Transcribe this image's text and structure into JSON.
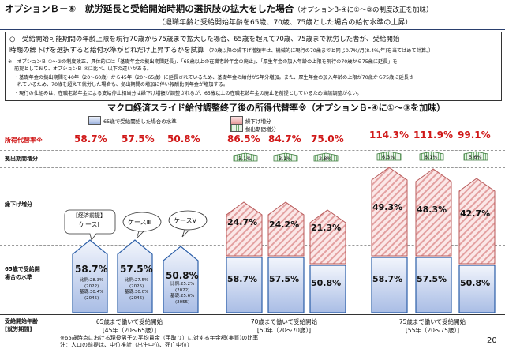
{
  "header": {
    "title": "オプションＢ－⑤　就労延長と受給開始時期の選択肢の拡大をした場合",
    "note": "（オプションB-④に①～③の制度改正を加味）",
    "subtitle": "（退職年齢と受給開始年齢を65歳、70歳、75歳とした場合の給付水準の上昇）"
  },
  "box": {
    "line1": "○　受給開始可能期間の年齢上限を現行70歳から75歳まで拡大した場合、65歳を超えて70歳、75歳まで就労した者が、受給開始",
    "line2": "時期の繰下げを選択すると給付水準がどれだけ上昇するかを試算",
    "line2_note": "（70歳以降の繰下げ増額率は、機械的に現行の70歳までと同じ0.7%/月(8.4%/年)を当てはめて計算。）",
    "note1": "※　オプションＢ-①～③の制度改正、具体的には「基礎年金の拠出期間延長」、「65歳以上の在職老齢年金の廃止」、「厚生年金の加入年齢の上限を現行の70歳から75歳に延長」を",
    "note1b": "前提としており、オプションＢ-④に比べ、以下の違いがある。",
    "note2": "・基礎年金の拠出期間を40年（20～60歳）から45年（20～65歳）に延長されているため、基礎年金の給付が5年分増加。また、厚生年金の加入年齢の上限が70歳から75歳に延長さ",
    "note2b": "れているため、70歳を超えて就労した場合も、拠出期間の増加に伴い報酬比例年金が増加する。",
    "note3": "・現行の仕組みは、在職老齢年金による支給停止相当分は繰下げ増額が調整されるが、65歳以上の在職老齢年金の廃止を前提としているため当該調整がない。"
  },
  "chart": {
    "title": "マクロ経済スライド給付調整終了後の所得代替率※（オプションＢ-④に①～③を加味）",
    "legend": [
      "65歳で受給開始した場合の水準",
      "繰下げ増分",
      "拠出期間増分"
    ],
    "row_labels": {
      "rate": "所得代替率※",
      "contrib": "拠出期間増分",
      "defer": "繰下げ増分",
      "base": "65歳で受給開始した場合の水準",
      "base2": "場合の水準"
    },
    "base_label": "65歳で受給開",
    "cases": [
      "ケースⅠ",
      "ケースⅢ",
      "ケースⅤ"
    ],
    "case_note": "【経済前提】",
    "groups": [
      {
        "label1": "65歳まで働いて受給開始",
        "label2": "[45年（20～65歳）]",
        "rates": [
          "58.7%",
          "57.5%",
          "50.8%"
        ],
        "base": [
          "58.7%",
          "57.5%",
          "50.8%"
        ],
        "defer": [],
        "contrib": [],
        "details": [
          {
            "l1": "比例:28.3%",
            "l2": "(2022)",
            "l3": "基礎:30.4%",
            "l4": "(2045)"
          },
          {
            "l1": "比例:27.5%",
            "l2": "(2025)",
            "l3": "基礎:30.0%",
            "l4": "(2046)"
          },
          {
            "l1": "比例:25.2%",
            "l2": "(2022)",
            "l3": "基礎:25.6%",
            "l4": "(2055)"
          }
        ]
      },
      {
        "label1": "70歳まで働いて受給開始",
        "label2": "[50年（20～70歳）]",
        "rates": [
          "86.5%",
          "84.7%",
          "75.0%"
        ],
        "base": [
          "58.7%",
          "57.5%",
          "50.8%"
        ],
        "defer": [
          "24.7%",
          "24.2%",
          "21.3%"
        ],
        "contrib": [
          "3.1%",
          "3.1%",
          "2.8%"
        ]
      },
      {
        "label1": "75歳まで働いて受給開始",
        "label2": "[55年（20～75歳）]",
        "rates": [
          "114.3%",
          "111.9%",
          "99.1%"
        ],
        "base": [
          "58.7%",
          "57.5%",
          "50.8%"
        ],
        "defer": [
          "49.3%",
          "48.3%",
          "42.7%"
        ],
        "contrib": [
          "6.3%",
          "6.1%",
          "5.6%"
        ]
      }
    ],
    "left_label1": "受給開始年齢",
    "left_label2": "[就労期間]"
  },
  "footer": {
    "n1": "※65歳時点における現役男子の平均賃金（手取り）に対する年金額(実質)の比率",
    "n2": "注：人口の前提は、中位推計（出生中位、死亡中位）"
  },
  "page_number": "20",
  "colors": {
    "blue": "#2b6cc4",
    "red": "#d01818",
    "green": "#2d8a3a",
    "navy": "#2a3f6e"
  }
}
